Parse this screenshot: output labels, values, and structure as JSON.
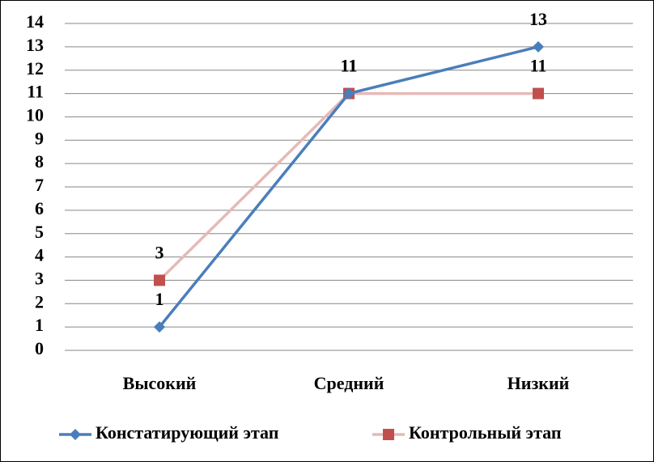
{
  "chart_data": {
    "type": "line",
    "categories": [
      "Высокий",
      "Средний",
      "Низкий"
    ],
    "series": [
      {
        "name": "Констатирующий этап",
        "color": "#4a7ebb",
        "marker_color": "#4a7ebb",
        "marker": "diamond",
        "values": [
          1,
          11,
          13
        ]
      },
      {
        "name": "Контрольный этап",
        "color": "#e6b9b8",
        "marker_color": "#c0504d",
        "marker": "square",
        "values": [
          3,
          11,
          11
        ]
      }
    ],
    "ylim": [
      0,
      14
    ],
    "yticks": [
      0,
      1,
      2,
      3,
      4,
      5,
      6,
      7,
      8,
      9,
      10,
      11,
      12,
      13,
      14
    ],
    "grid": true,
    "legend": "bottom"
  }
}
